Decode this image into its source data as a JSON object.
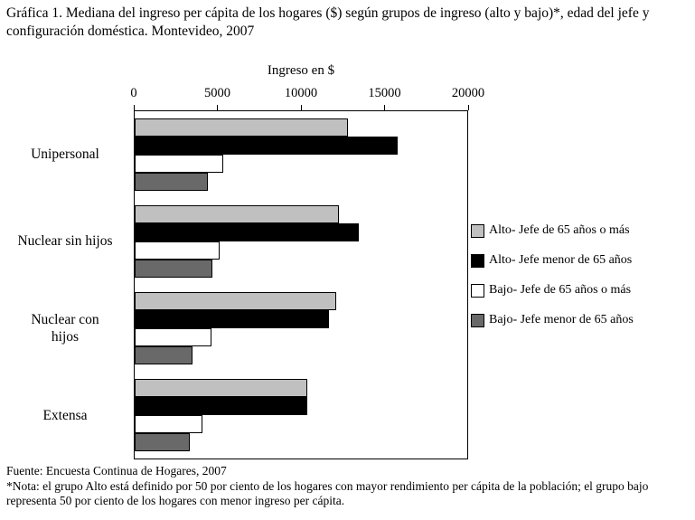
{
  "caption": "Gráfica 1. Mediana del ingreso per cápita de los hogares ($) según grupos de ingreso (alto y bajo)*, edad del jefe y configuración doméstica. Montevideo, 2007",
  "chart_data": {
    "type": "bar",
    "orientation": "horizontal",
    "xlabel": "Ingreso en $",
    "xlim": [
      0,
      20000
    ],
    "x_ticks": [
      0,
      5000,
      10000,
      15000,
      20000
    ],
    "grid": false,
    "legend_position": "right",
    "categories": [
      "Unipersonal",
      "Nuclear sin hijos",
      "Nuclear con hijos",
      "Extensa"
    ],
    "category_display": [
      "Unipersonal",
      "Nuclear sin hijos",
      "Nuclear con\nhijos",
      "Extensa"
    ],
    "series": [
      {
        "name": "Alto- Jefe de 65 años o más",
        "color": "#c0c0c0",
        "values": [
          12800,
          12300,
          12100,
          10400
        ]
      },
      {
        "name": "Alto- Jefe menor de 65 años",
        "color": "#000000",
        "values": [
          15800,
          13500,
          11700,
          10400
        ]
      },
      {
        "name": "Bajo- Jefe de 65 años o más",
        "color": "#ffffff",
        "values": [
          5300,
          5100,
          4600,
          4100
        ]
      },
      {
        "name": "Bajo- Jefe menor de 65 años",
        "color": "#696969",
        "values": [
          4400,
          4700,
          3500,
          3300
        ]
      }
    ]
  },
  "footer": {
    "source": "Fuente: Encuesta Continua de Hogares, 2007",
    "note": "*Nota: el grupo Alto está definido por 50 por ciento de los hogares con mayor  rendimiento per cápita de la población; el grupo bajo representa 50 por ciento de los hogares con menor ingreso per cápita."
  }
}
